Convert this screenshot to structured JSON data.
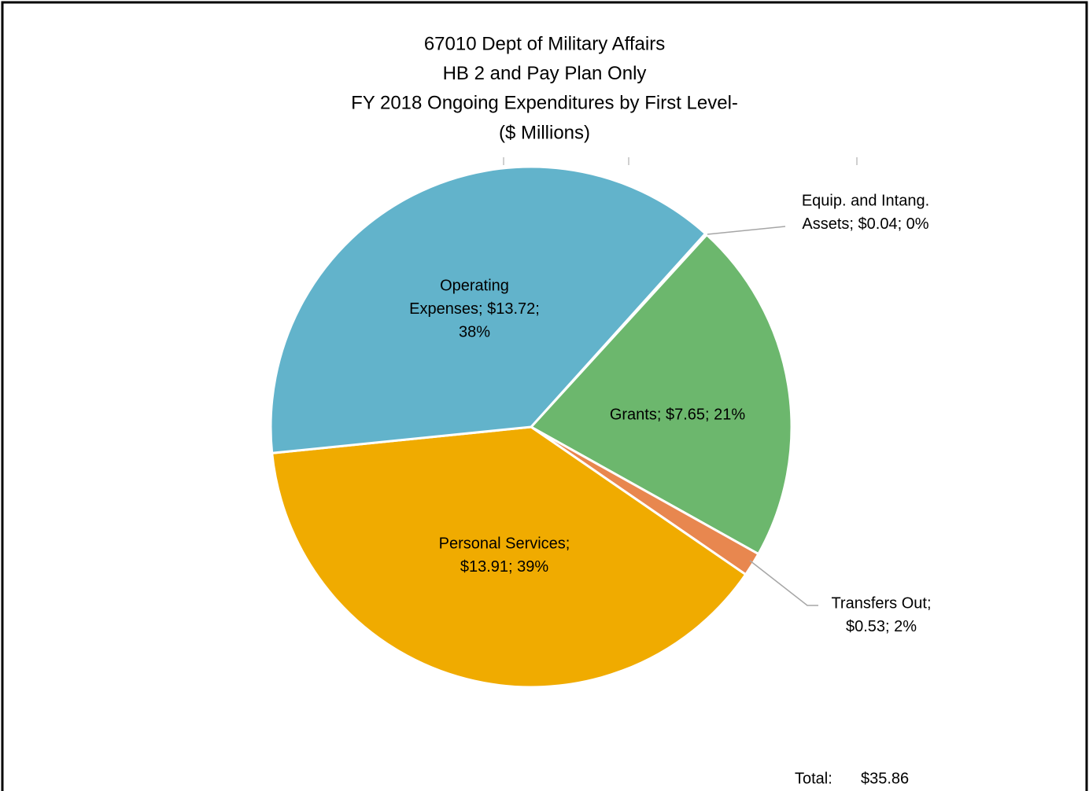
{
  "chart_data": {
    "type": "pie",
    "title": [
      "67010 Dept of Military Affairs",
      "HB 2 and Pay Plan Only",
      "FY 2018 Ongoing Expenditures by First Level-",
      "($ Millions)"
    ],
    "values": [
      0.04,
      7.65,
      0.53,
      13.91,
      13.72
    ],
    "value_labels": [
      [
        "Equip. and Intang.",
        "Assets; $0.04; 0%"
      ],
      [
        "Grants; $7.65; 21%"
      ],
      [
        "Transfers  Out;",
        "$0.53; 2%"
      ],
      [
        "Personal Services;",
        "$13.91; 39%"
      ],
      [
        "Operating",
        "Expenses; $13.72;",
        "38%"
      ]
    ],
    "colors": [
      "#4472c4",
      "#6cb76d",
      "#e8874f",
      "#f0ab00",
      "#62b3cb"
    ],
    "total": {
      "label": "Total:",
      "value": 35.86,
      "value_label": "$35.86"
    }
  }
}
